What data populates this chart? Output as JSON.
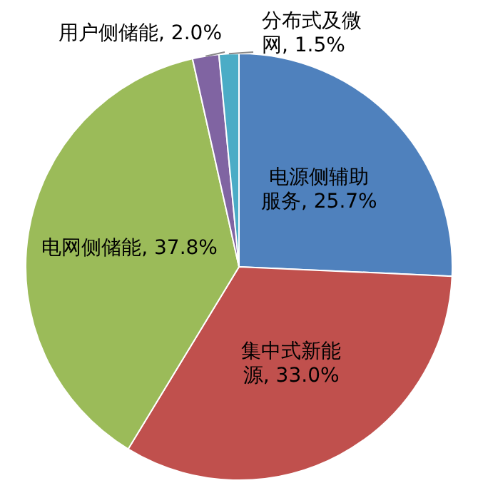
{
  "chart_data": {
    "type": "pie",
    "categories": [
      "电源侧辅助服务",
      "集中式新能源",
      "电网侧储能",
      "用户侧储能",
      "分布式及微网"
    ],
    "values": [
      25.7,
      33.0,
      37.8,
      2.0,
      1.5
    ],
    "value_labels": [
      "25.7%",
      "33.0%",
      "37.8%",
      "2.0%",
      "1.5%"
    ],
    "colors": [
      "#4f81bd",
      "#c0504d",
      "#9bbb59",
      "#8064a2",
      "#4bacc6"
    ],
    "data_labels": true,
    "legend": false
  }
}
